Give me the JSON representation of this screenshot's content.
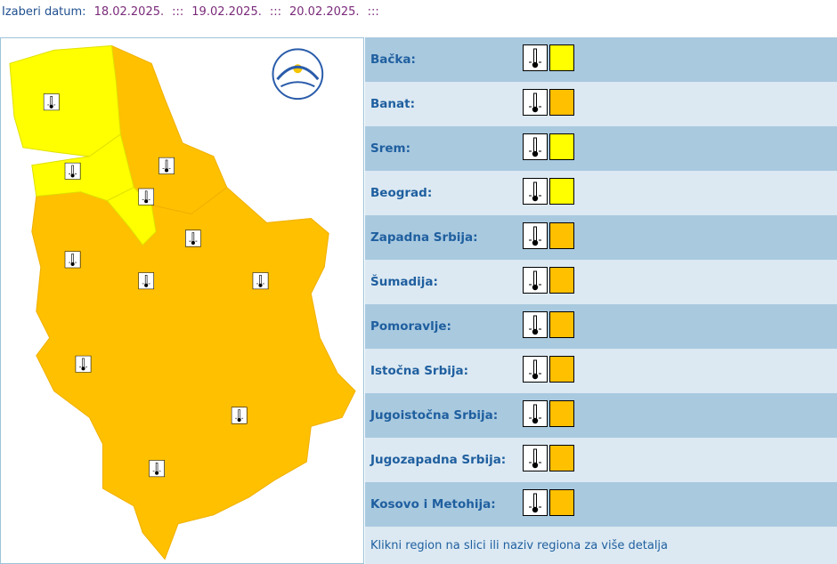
{
  "header": {
    "label": "Izaberi datum:",
    "separator": ":::",
    "dates": [
      "18.02.2025.",
      "19.02.2025.",
      "20.02.2025."
    ]
  },
  "regions": [
    {
      "name": "Bačka:",
      "level_color": "#ffff00"
    },
    {
      "name": "Banat:",
      "level_color": "#ffc000"
    },
    {
      "name": "Srem:",
      "level_color": "#ffff00"
    },
    {
      "name": "Beograd:",
      "level_color": "#ffff00"
    },
    {
      "name": "Zapadna Srbija:",
      "level_color": "#ffc000"
    },
    {
      "name": "Šumadija:",
      "level_color": "#ffc000"
    },
    {
      "name": "Pomoravlje:",
      "level_color": "#ffc000"
    },
    {
      "name": "Istočna Srbija:",
      "level_color": "#ffc000"
    },
    {
      "name": "Jugoistočna Srbija:",
      "level_color": "#ffc000"
    },
    {
      "name": "Jugozapadna Srbija:",
      "level_color": "#ffc000"
    },
    {
      "name": "Kosovo i Metohija:",
      "level_color": "#ffc000"
    }
  ],
  "footer": "Klikni region na slici ili naziv regiona za više detalja"
}
